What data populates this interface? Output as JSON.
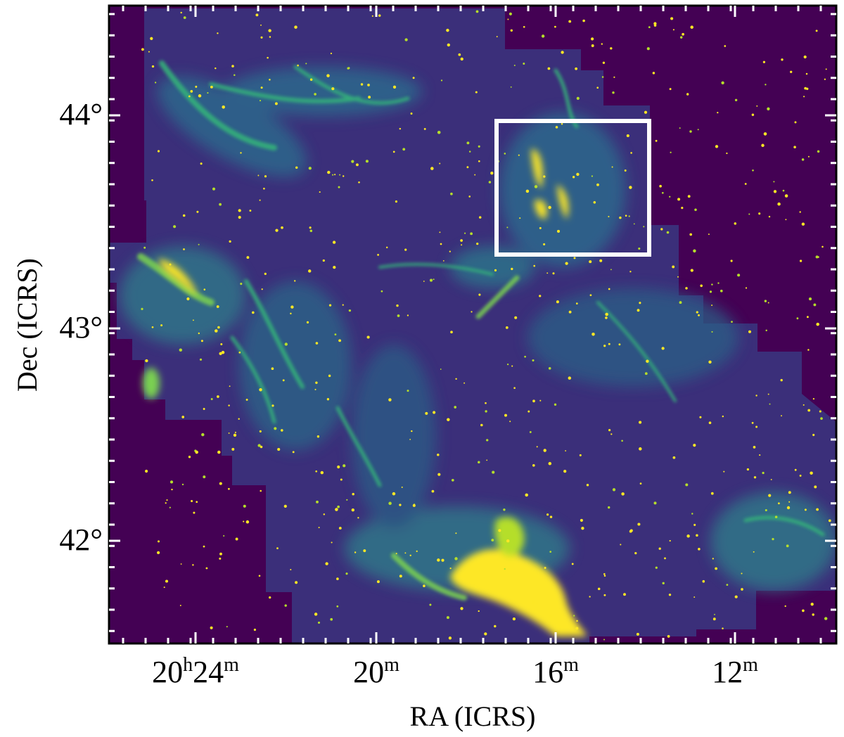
{
  "figure": {
    "xlabel": "RA (ICRS)",
    "ylabel": "Dec (ICRS)",
    "x_ticks": [
      {
        "h": "20",
        "h_unit": "h",
        "m": "24",
        "m_unit": "m"
      },
      {
        "m": "20",
        "m_unit": "m"
      },
      {
        "m": "16",
        "m_unit": "m"
      },
      {
        "m": "12",
        "m_unit": "m"
      }
    ],
    "y_ticks": [
      "44°",
      "43°",
      "42°"
    ],
    "colors": {
      "background": "#440154",
      "emission_mid": "#21918c",
      "emission_bright": "#fde725",
      "box": "#ffffff"
    }
  }
}
